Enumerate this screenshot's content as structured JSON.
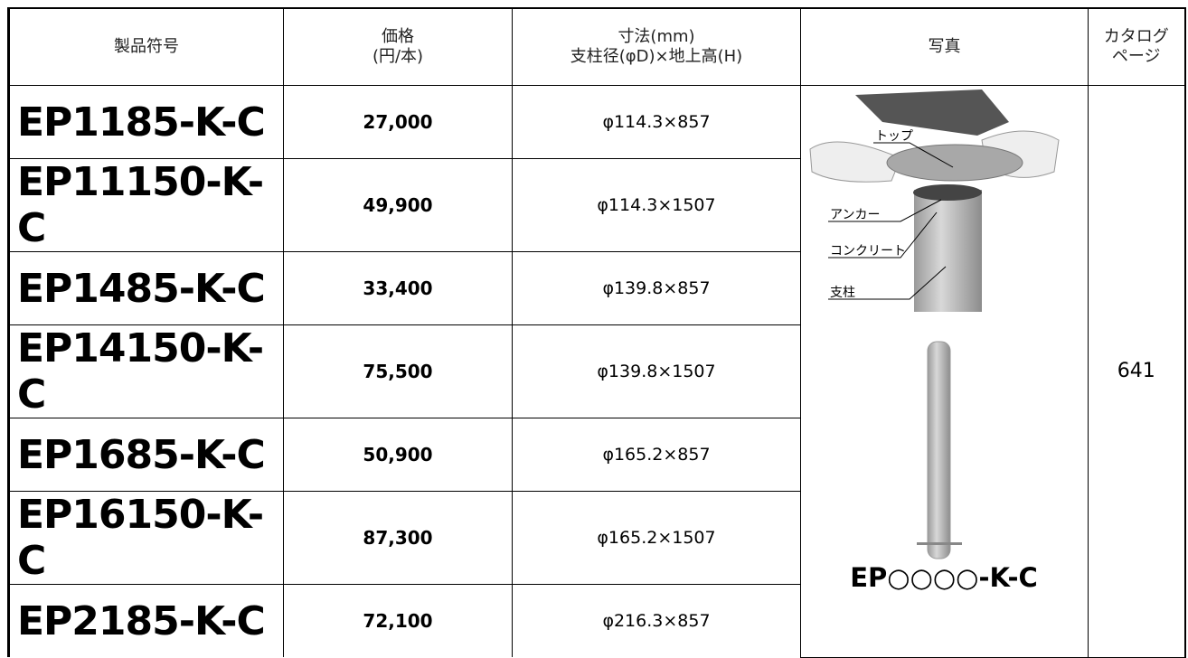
{
  "table": {
    "header": [
      [
        "製品符号"
      ],
      [
        "価格",
        "(円/本)"
      ],
      [
        "寸法(mm)",
        "支柱径(φD)×地上高(H)"
      ],
      [
        "写真"
      ],
      [
        "カタログ",
        "ページ"
      ]
    ],
    "rows": [
      [
        "EP1185-K-C",
        "27,000",
        "φ114.3×857"
      ],
      [
        "EP11150-K-C",
        "49,900",
        "φ114.3×1507"
      ],
      [
        "EP1485-K-C",
        "33,400",
        "φ139.8×857"
      ],
      [
        "EP14150-K-C",
        "75,500",
        "φ139.8×1507"
      ],
      [
        "EP1685-K-C",
        "50,900",
        "φ165.2×857"
      ],
      [
        "EP16150-K-C",
        "87,300",
        "φ165.2×1507"
      ],
      [
        "EP2185-K-C",
        "72,100",
        "φ216.3×857"
      ]
    ],
    "photo": {
      "labels": [
        "トップ",
        "アンカー",
        "コンクリート",
        "支柱"
      ],
      "caption": "EP○○○○-K-C"
    },
    "catalog_page": "641"
  }
}
